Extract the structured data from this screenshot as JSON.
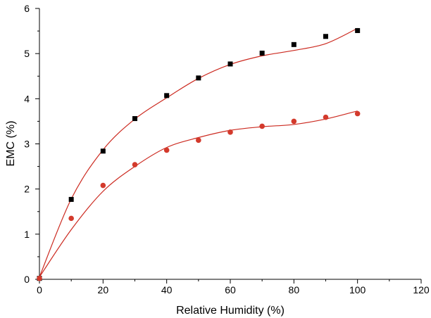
{
  "chart_data": {
    "type": "scatter",
    "title": "",
    "xlabel": "Relative Humidity (%)",
    "ylabel": "EMC (%)",
    "xlim": [
      0,
      120
    ],
    "ylim": [
      0,
      6
    ],
    "x_ticks": [
      "0",
      "20",
      "40",
      "60",
      "80",
      "100",
      "120"
    ],
    "y_ticks": [
      "0",
      "1",
      "2",
      "3",
      "4",
      "5",
      "6"
    ],
    "grid": false,
    "legend": "none",
    "series": [
      {
        "marker": "square",
        "color": "#000000",
        "fit_color": "#cc2a20",
        "x": [
          0,
          10,
          20,
          30,
          40,
          50,
          60,
          70,
          80,
          90,
          100
        ],
        "y": [
          0.02,
          1.77,
          2.84,
          3.56,
          4.07,
          4.46,
          4.77,
          5.01,
          5.2,
          5.38,
          5.51
        ],
        "fit_y": [
          0.05,
          1.78,
          2.87,
          3.55,
          4.02,
          4.45,
          4.76,
          4.95,
          5.07,
          5.22,
          5.56
        ]
      },
      {
        "marker": "circle",
        "color": "#d33a2c",
        "fit_color": "#cc2a20",
        "x": [
          0,
          10,
          20,
          30,
          40,
          50,
          60,
          70,
          80,
          90,
          100
        ],
        "y": [
          0.02,
          1.35,
          2.08,
          2.54,
          2.86,
          3.08,
          3.26,
          3.39,
          3.5,
          3.59,
          3.67
        ],
        "fit_y": [
          0.05,
          1.1,
          1.95,
          2.5,
          2.92,
          3.14,
          3.3,
          3.38,
          3.43,
          3.55,
          3.73
        ]
      }
    ]
  }
}
